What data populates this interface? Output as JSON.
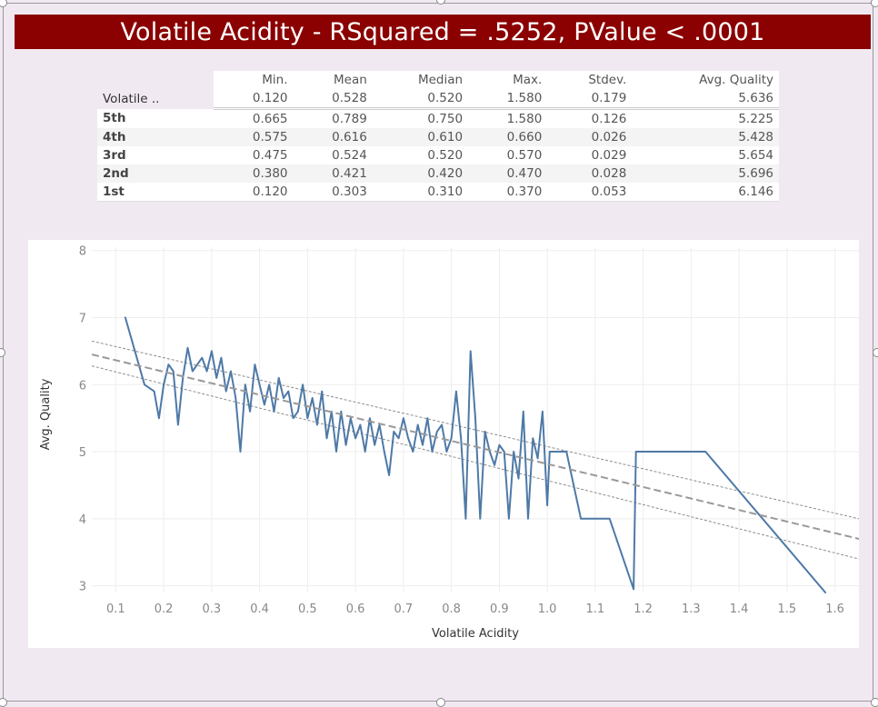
{
  "title": "Volatile Acidity  - RSquared = .5252, PValue < .0001",
  "table": {
    "row_header": "Volatile ..",
    "columns": [
      "Min.",
      "Mean",
      "Median",
      "Max.",
      "Stdev.",
      "Avg. Quality"
    ],
    "overall": [
      "0.120",
      "0.528",
      "0.520",
      "1.580",
      "0.179",
      "5.636"
    ],
    "rows": [
      {
        "label": "5th",
        "values": [
          "0.665",
          "0.789",
          "0.750",
          "1.580",
          "0.126",
          "5.225"
        ]
      },
      {
        "label": "4th",
        "values": [
          "0.575",
          "0.616",
          "0.610",
          "0.660",
          "0.026",
          "5.428"
        ]
      },
      {
        "label": "3rd",
        "values": [
          "0.475",
          "0.524",
          "0.520",
          "0.570",
          "0.029",
          "5.654"
        ]
      },
      {
        "label": "2nd",
        "values": [
          "0.380",
          "0.421",
          "0.420",
          "0.470",
          "0.028",
          "5.696"
        ]
      },
      {
        "label": "1st",
        "values": [
          "0.120",
          "0.303",
          "0.310",
          "0.370",
          "0.053",
          "6.146"
        ]
      }
    ]
  },
  "chart_data": {
    "type": "line",
    "xlabel": "Volatile Acidity",
    "ylabel": "Avg. Quality",
    "xlim": [
      0.05,
      1.65
    ],
    "ylim": [
      2.9,
      8.05
    ],
    "xticks": [
      "0.1",
      "0.2",
      "0.3",
      "0.4",
      "0.5",
      "0.6",
      "0.7",
      "0.8",
      "0.9",
      "1.0",
      "1.1",
      "1.2",
      "1.3",
      "1.4",
      "1.5",
      "1.6"
    ],
    "xtick_values": [
      0.1,
      0.2,
      0.3,
      0.4,
      0.5,
      0.6,
      0.7,
      0.8,
      0.9,
      1.0,
      1.1,
      1.2,
      1.3,
      1.4,
      1.5,
      1.6
    ],
    "yticks": [
      "3",
      "4",
      "5",
      "6",
      "7",
      "8"
    ],
    "ytick_values": [
      3,
      4,
      5,
      6,
      7,
      8
    ],
    "grid": true,
    "line_color": "#4e79a7",
    "trend_color": "#999999",
    "series": [
      {
        "x": [
          0.12,
          0.16,
          0.18,
          0.19,
          0.2,
          0.21,
          0.22,
          0.23,
          0.24,
          0.25,
          0.26,
          0.27,
          0.28,
          0.29,
          0.3,
          0.31,
          0.32,
          0.33,
          0.34,
          0.35,
          0.36,
          0.37,
          0.38,
          0.39,
          0.4,
          0.41,
          0.42,
          0.43,
          0.44,
          0.45,
          0.46,
          0.47,
          0.48,
          0.49,
          0.5,
          0.51,
          0.52,
          0.53,
          0.54,
          0.55,
          0.56,
          0.57,
          0.58,
          0.59,
          0.6,
          0.61,
          0.62,
          0.63,
          0.64,
          0.65,
          0.66,
          0.67,
          0.68,
          0.69,
          0.7,
          0.71,
          0.72,
          0.73,
          0.74,
          0.75,
          0.76,
          0.77,
          0.78,
          0.79,
          0.8,
          0.81,
          0.82,
          0.83,
          0.84,
          0.85,
          0.86,
          0.87,
          0.88,
          0.89,
          0.9,
          0.91,
          0.92,
          0.93,
          0.94,
          0.95,
          0.96,
          0.97,
          0.98,
          0.99,
          1.0,
          1.005,
          1.01,
          1.02,
          1.03,
          1.04,
          1.07,
          1.09,
          1.115,
          1.13,
          1.18,
          1.185,
          1.24,
          1.33,
          1.58
        ],
        "y": [
          7.0,
          6.0,
          5.9,
          5.5,
          6.0,
          6.3,
          6.2,
          5.4,
          6.1,
          6.55,
          6.2,
          6.3,
          6.4,
          6.2,
          6.5,
          6.1,
          6.4,
          5.9,
          6.2,
          5.8,
          5.0,
          6.0,
          5.6,
          6.3,
          6.0,
          5.7,
          6.0,
          5.6,
          6.1,
          5.8,
          5.9,
          5.5,
          5.6,
          6.0,
          5.5,
          5.8,
          5.4,
          5.9,
          5.2,
          5.6,
          5.0,
          5.6,
          5.1,
          5.5,
          5.2,
          5.4,
          5.0,
          5.5,
          5.1,
          5.4,
          5.0,
          4.65,
          5.3,
          5.2,
          5.5,
          5.2,
          5.0,
          5.4,
          5.1,
          5.5,
          5.0,
          5.3,
          5.4,
          5.0,
          5.2,
          5.9,
          5.2,
          4.0,
          6.5,
          5.5,
          4.0,
          5.3,
          5.0,
          4.8,
          5.1,
          5.0,
          4.0,
          5.0,
          4.6,
          5.6,
          4.0,
          5.2,
          4.9,
          5.6,
          4.2,
          5.0,
          5.0,
          5.0,
          5.0,
          5.0,
          4.0,
          4.0,
          4.0,
          4.0,
          2.95,
          5.0,
          5.0,
          5.0,
          2.9
        ]
      }
    ],
    "trend_line": {
      "x": [
        0.05,
        1.65
      ],
      "y": [
        6.45,
        3.7
      ]
    },
    "confidence_upper": {
      "x": [
        0.05,
        1.65
      ],
      "y": [
        6.65,
        4.0
      ]
    },
    "confidence_lower": {
      "x": [
        0.05,
        1.65
      ],
      "y": [
        6.28,
        3.4
      ]
    }
  }
}
